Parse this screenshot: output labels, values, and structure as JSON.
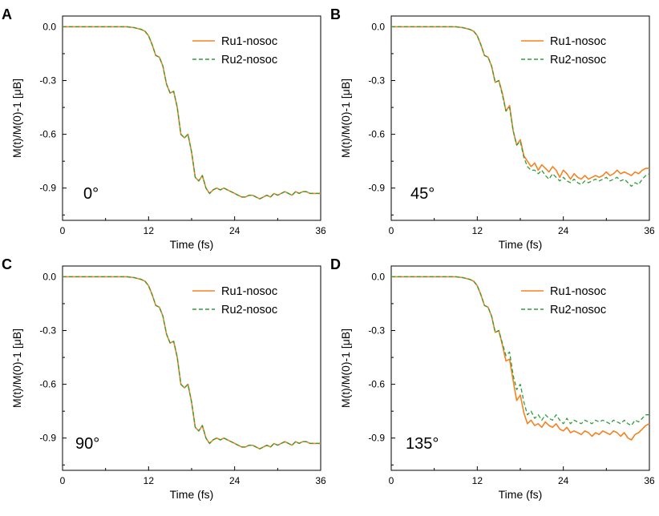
{
  "colors": {
    "ru1": "#F58220",
    "ru2": "#2E9E3B",
    "axis": "#000000",
    "background": "#FFFFFF"
  },
  "chart_data": [
    {
      "type": "line",
      "panel_letter": "A",
      "annotation": "0°",
      "xlabel": "Time (fs)",
      "ylabel": "M(t)/M(0)-1 [μB]",
      "xlim": [
        0,
        36
      ],
      "ylim": [
        -1.08,
        0.06
      ],
      "x_ticks": [
        "0",
        "12",
        "24",
        "36"
      ],
      "y_ticks": [
        "0.0",
        "-0.3",
        "-0.6",
        "-0.9"
      ],
      "legend_position": "top-right",
      "grid": false,
      "x": [
        0,
        9,
        10,
        11,
        11.5,
        12,
        12.5,
        13,
        13.5,
        14,
        14.5,
        15,
        15.5,
        16,
        16.5,
        17,
        17.5,
        18,
        18.5,
        19,
        19.5,
        20,
        20.5,
        21,
        21.5,
        22,
        22.5,
        23,
        23.5,
        24,
        24.5,
        25,
        25.5,
        26,
        26.5,
        27,
        27.5,
        28,
        28.5,
        29,
        29.5,
        30,
        30.5,
        31,
        31.5,
        32,
        32.5,
        33,
        33.5,
        34,
        34.5,
        35,
        35.5,
        36
      ],
      "series": [
        {
          "name": "Ru1-nosoc",
          "style": "solid",
          "values": [
            0,
            0,
            -0.005,
            -0.015,
            -0.025,
            -0.05,
            -0.1,
            -0.16,
            -0.17,
            -0.22,
            -0.32,
            -0.37,
            -0.36,
            -0.45,
            -0.6,
            -0.62,
            -0.6,
            -0.7,
            -0.84,
            -0.86,
            -0.83,
            -0.9,
            -0.93,
            -0.91,
            -0.9,
            -0.91,
            -0.9,
            -0.91,
            -0.92,
            -0.93,
            -0.94,
            -0.95,
            -0.95,
            -0.94,
            -0.94,
            -0.95,
            -0.96,
            -0.95,
            -0.94,
            -0.95,
            -0.93,
            -0.94,
            -0.93,
            -0.92,
            -0.93,
            -0.94,
            -0.92,
            -0.93,
            -0.92,
            -0.92,
            -0.93,
            -0.93,
            -0.93,
            -0.93
          ]
        },
        {
          "name": "Ru2-nosoc",
          "style": "dashed",
          "values": [
            0,
            0,
            -0.005,
            -0.015,
            -0.025,
            -0.05,
            -0.1,
            -0.16,
            -0.17,
            -0.22,
            -0.32,
            -0.37,
            -0.36,
            -0.45,
            -0.6,
            -0.62,
            -0.6,
            -0.7,
            -0.84,
            -0.86,
            -0.83,
            -0.9,
            -0.93,
            -0.91,
            -0.9,
            -0.91,
            -0.9,
            -0.91,
            -0.92,
            -0.93,
            -0.94,
            -0.95,
            -0.95,
            -0.94,
            -0.94,
            -0.95,
            -0.96,
            -0.95,
            -0.94,
            -0.95,
            -0.93,
            -0.94,
            -0.93,
            -0.92,
            -0.93,
            -0.94,
            -0.92,
            -0.93,
            -0.92,
            -0.92,
            -0.93,
            -0.93,
            -0.93,
            -0.93
          ]
        }
      ]
    },
    {
      "type": "line",
      "panel_letter": "B",
      "annotation": "45°",
      "xlabel": "Time (fs)",
      "ylabel": "M(t)/M(0)-1 [μB]",
      "xlim": [
        0,
        36
      ],
      "ylim": [
        -1.08,
        0.06
      ],
      "x_ticks": [
        "0",
        "12",
        "24",
        "36"
      ],
      "y_ticks": [
        "0.0",
        "-0.3",
        "-0.6",
        "-0.9"
      ],
      "legend_position": "top-right",
      "grid": false,
      "x": [
        0,
        9,
        10,
        11,
        11.5,
        12,
        12.5,
        13,
        13.5,
        14,
        14.5,
        15,
        15.5,
        16,
        16.5,
        17,
        17.5,
        18,
        18.5,
        19,
        19.5,
        20,
        20.5,
        21,
        21.5,
        22,
        22.5,
        23,
        23.5,
        24,
        24.5,
        25,
        25.5,
        26,
        26.5,
        27,
        27.5,
        28,
        28.5,
        29,
        29.5,
        30,
        30.5,
        31,
        31.5,
        32,
        32.5,
        33,
        33.5,
        34,
        34.5,
        35,
        35.5,
        36
      ],
      "series": [
        {
          "name": "Ru1-nosoc",
          "style": "solid",
          "values": [
            0,
            0,
            -0.005,
            -0.015,
            -0.025,
            -0.05,
            -0.1,
            -0.16,
            -0.17,
            -0.22,
            -0.31,
            -0.3,
            -0.37,
            -0.47,
            -0.44,
            -0.58,
            -0.66,
            -0.63,
            -0.72,
            -0.75,
            -0.78,
            -0.76,
            -0.8,
            -0.77,
            -0.79,
            -0.81,
            -0.78,
            -0.8,
            -0.84,
            -0.8,
            -0.82,
            -0.85,
            -0.82,
            -0.84,
            -0.85,
            -0.83,
            -0.85,
            -0.84,
            -0.83,
            -0.84,
            -0.83,
            -0.81,
            -0.83,
            -0.82,
            -0.8,
            -0.82,
            -0.81,
            -0.82,
            -0.83,
            -0.81,
            -0.82,
            -0.8,
            -0.79,
            -0.79
          ]
        },
        {
          "name": "Ru2-nosoc",
          "style": "dashed",
          "values": [
            0,
            0,
            -0.005,
            -0.015,
            -0.025,
            -0.05,
            -0.1,
            -0.16,
            -0.17,
            -0.22,
            -0.31,
            -0.3,
            -0.38,
            -0.47,
            -0.45,
            -0.58,
            -0.66,
            -0.64,
            -0.73,
            -0.78,
            -0.8,
            -0.8,
            -0.82,
            -0.8,
            -0.83,
            -0.85,
            -0.82,
            -0.84,
            -0.86,
            -0.84,
            -0.86,
            -0.87,
            -0.85,
            -0.87,
            -0.88,
            -0.86,
            -0.87,
            -0.86,
            -0.85,
            -0.86,
            -0.85,
            -0.84,
            -0.86,
            -0.85,
            -0.84,
            -0.86,
            -0.85,
            -0.87,
            -0.89,
            -0.87,
            -0.88,
            -0.85,
            -0.83,
            -0.82
          ]
        }
      ]
    },
    {
      "type": "line",
      "panel_letter": "C",
      "annotation": "90°",
      "xlabel": "Time (fs)",
      "ylabel": "M(t)/M(0)-1 [μB]",
      "xlim": [
        0,
        36
      ],
      "ylim": [
        -1.08,
        0.06
      ],
      "x_ticks": [
        "0",
        "12",
        "24",
        "36"
      ],
      "y_ticks": [
        "0.0",
        "-0.3",
        "-0.6",
        "-0.9"
      ],
      "legend_position": "top-right",
      "grid": false,
      "x": [
        0,
        9,
        10,
        11,
        11.5,
        12,
        12.5,
        13,
        13.5,
        14,
        14.5,
        15,
        15.5,
        16,
        16.5,
        17,
        17.5,
        18,
        18.5,
        19,
        19.5,
        20,
        20.5,
        21,
        21.5,
        22,
        22.5,
        23,
        23.5,
        24,
        24.5,
        25,
        25.5,
        26,
        26.5,
        27,
        27.5,
        28,
        28.5,
        29,
        29.5,
        30,
        30.5,
        31,
        31.5,
        32,
        32.5,
        33,
        33.5,
        34,
        34.5,
        35,
        35.5,
        36
      ],
      "series": [
        {
          "name": "Ru1-nosoc",
          "style": "solid",
          "values": [
            0,
            0,
            -0.005,
            -0.015,
            -0.025,
            -0.05,
            -0.1,
            -0.16,
            -0.17,
            -0.22,
            -0.32,
            -0.37,
            -0.36,
            -0.45,
            -0.6,
            -0.62,
            -0.6,
            -0.7,
            -0.84,
            -0.86,
            -0.83,
            -0.9,
            -0.93,
            -0.91,
            -0.9,
            -0.91,
            -0.9,
            -0.91,
            -0.92,
            -0.93,
            -0.94,
            -0.95,
            -0.95,
            -0.94,
            -0.94,
            -0.95,
            -0.96,
            -0.95,
            -0.94,
            -0.95,
            -0.93,
            -0.94,
            -0.93,
            -0.92,
            -0.93,
            -0.94,
            -0.92,
            -0.93,
            -0.92,
            -0.92,
            -0.93,
            -0.93,
            -0.93,
            -0.93
          ]
        },
        {
          "name": "Ru2-nosoc",
          "style": "dashed",
          "values": [
            0,
            0,
            -0.005,
            -0.015,
            -0.025,
            -0.05,
            -0.1,
            -0.16,
            -0.17,
            -0.22,
            -0.32,
            -0.37,
            -0.36,
            -0.45,
            -0.6,
            -0.62,
            -0.6,
            -0.7,
            -0.84,
            -0.86,
            -0.83,
            -0.9,
            -0.93,
            -0.91,
            -0.9,
            -0.91,
            -0.9,
            -0.91,
            -0.92,
            -0.93,
            -0.94,
            -0.95,
            -0.95,
            -0.94,
            -0.94,
            -0.95,
            -0.96,
            -0.95,
            -0.94,
            -0.95,
            -0.93,
            -0.94,
            -0.93,
            -0.92,
            -0.93,
            -0.94,
            -0.92,
            -0.93,
            -0.92,
            -0.92,
            -0.93,
            -0.93,
            -0.93,
            -0.93
          ]
        }
      ]
    },
    {
      "type": "line",
      "panel_letter": "D",
      "annotation": "135°",
      "xlabel": "Time (fs)",
      "ylabel": "M(t)/M(0)-1 [μB]",
      "xlim": [
        0,
        36
      ],
      "ylim": [
        -1.08,
        0.06
      ],
      "x_ticks": [
        "0",
        "12",
        "24",
        "36"
      ],
      "y_ticks": [
        "0.0",
        "-0.3",
        "-0.6",
        "-0.9"
      ],
      "legend_position": "top-right",
      "grid": false,
      "x": [
        0,
        9,
        10,
        11,
        11.5,
        12,
        12.5,
        13,
        13.5,
        14,
        14.5,
        15,
        15.5,
        16,
        16.5,
        17,
        17.5,
        18,
        18.5,
        19,
        19.5,
        20,
        20.5,
        21,
        21.5,
        22,
        22.5,
        23,
        23.5,
        24,
        24.5,
        25,
        25.5,
        26,
        26.5,
        27,
        27.5,
        28,
        28.5,
        29,
        29.5,
        30,
        30.5,
        31,
        31.5,
        32,
        32.5,
        33,
        33.5,
        34,
        34.5,
        35,
        35.5,
        36
      ],
      "series": [
        {
          "name": "Ru1-nosoc",
          "style": "solid",
          "values": [
            0,
            0,
            -0.005,
            -0.015,
            -0.025,
            -0.05,
            -0.1,
            -0.16,
            -0.17,
            -0.22,
            -0.31,
            -0.3,
            -0.38,
            -0.47,
            -0.46,
            -0.58,
            -0.69,
            -0.66,
            -0.76,
            -0.82,
            -0.8,
            -0.83,
            -0.82,
            -0.84,
            -0.81,
            -0.83,
            -0.84,
            -0.82,
            -0.85,
            -0.86,
            -0.84,
            -0.87,
            -0.86,
            -0.87,
            -0.88,
            -0.86,
            -0.87,
            -0.89,
            -0.87,
            -0.88,
            -0.86,
            -0.87,
            -0.88,
            -0.86,
            -0.87,
            -0.89,
            -0.87,
            -0.9,
            -0.91,
            -0.88,
            -0.87,
            -0.85,
            -0.83,
            -0.82
          ]
        },
        {
          "name": "Ru2-nosoc",
          "style": "dashed",
          "values": [
            0,
            0,
            -0.005,
            -0.015,
            -0.025,
            -0.05,
            -0.1,
            -0.16,
            -0.17,
            -0.22,
            -0.31,
            -0.3,
            -0.37,
            -0.44,
            -0.42,
            -0.55,
            -0.63,
            -0.6,
            -0.7,
            -0.77,
            -0.75,
            -0.79,
            -0.77,
            -0.8,
            -0.77,
            -0.79,
            -0.8,
            -0.77,
            -0.8,
            -0.82,
            -0.79,
            -0.82,
            -0.8,
            -0.81,
            -0.82,
            -0.8,
            -0.81,
            -0.82,
            -0.8,
            -0.81,
            -0.8,
            -0.81,
            -0.82,
            -0.8,
            -0.81,
            -0.82,
            -0.8,
            -0.82,
            -0.83,
            -0.8,
            -0.81,
            -0.79,
            -0.77,
            -0.77
          ]
        }
      ]
    }
  ]
}
